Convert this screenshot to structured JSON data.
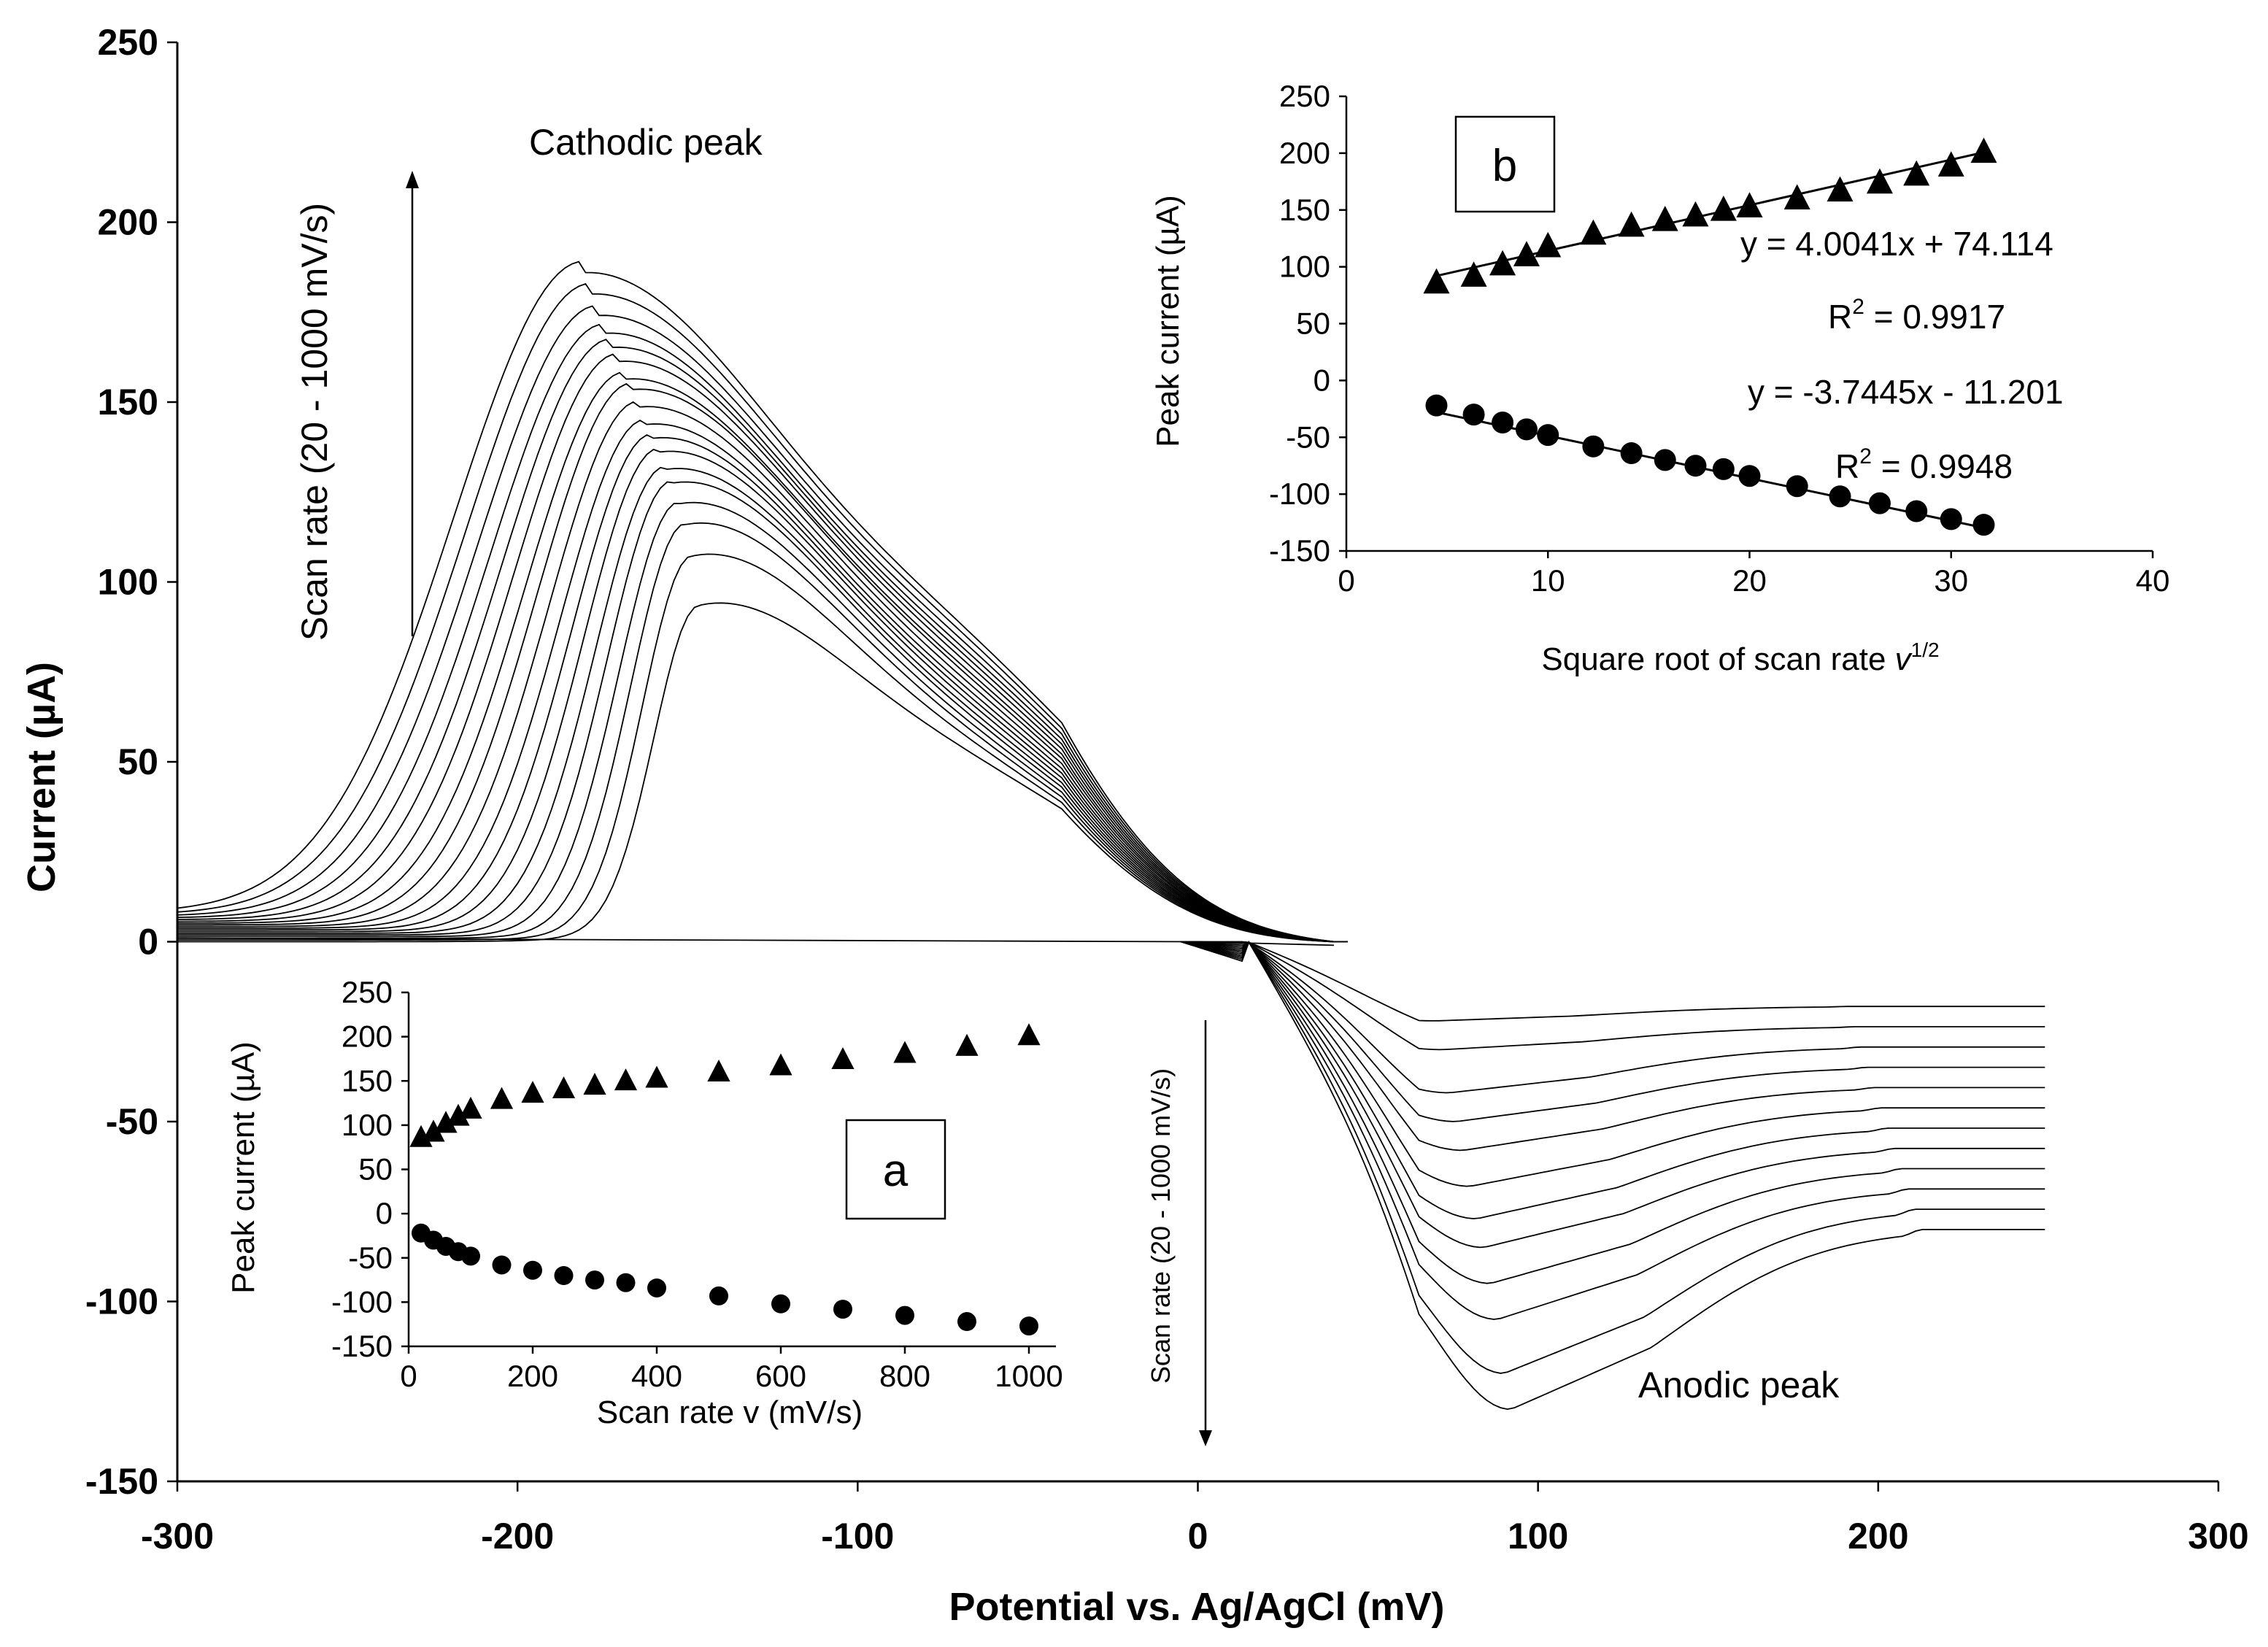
{
  "chart_data": [
    {
      "id": "main",
      "type": "line",
      "description_free": true,
      "xlabel": "Potential vs. Ag/AgCl  (mV)",
      "ylabel": "Current (µA)",
      "xlim": [
        -300,
        300
      ],
      "ylim": [
        -150,
        250
      ],
      "x_ticks": [
        "-300",
        "-200",
        "-100",
        "0",
        "100",
        "200",
        "300"
      ],
      "y_ticks": [
        "-150",
        "-100",
        "-50",
        "0",
        "50",
        "100",
        "150",
        "200",
        "250"
      ],
      "grid": false,
      "line_color": "#000000",
      "cathodic_peaks": {
        "potential": [
          -147,
          -149,
          -151,
          -153,
          -155,
          -157,
          -159,
          -161,
          -163,
          -165,
          -167,
          -169,
          -171,
          -173,
          -175,
          -177,
          -179,
          -181
        ],
        "current": [
          88,
          103,
          113,
          120,
          127,
          132,
          138,
          143,
          148,
          154,
          160,
          164,
          170,
          175,
          180,
          186,
          193,
          200
        ]
      },
      "anodic_peaks": {
        "potential": [
          70,
          72,
          74,
          76,
          78,
          80,
          82,
          84,
          86,
          88,
          90,
          92
        ],
        "current": [
          -22,
          -30,
          -42,
          -50,
          -58,
          -68,
          -77,
          -85,
          -95,
          -105,
          -120,
          -130
        ]
      },
      "annotations": {
        "cathodic_label": "Cathodic peak",
        "anodic_label": "Anodic peak",
        "scan_rate_up": "Scan rate (20 - 1000 mV/s)",
        "scan_rate_down": "Scan rate (20 - 1000 mV/s)"
      }
    },
    {
      "id": "inset-a",
      "type": "scatter",
      "box_label": "a",
      "xlabel": "Scan rate v (mV/s)",
      "ylabel": "Peak current (µA)",
      "xlim": [
        0,
        1000
      ],
      "ylim": [
        -150,
        250
      ],
      "x_ticks": [
        "0",
        "200",
        "400",
        "600",
        "800",
        "1000"
      ],
      "y_ticks": [
        "-150",
        "-100",
        "-50",
        "0",
        "50",
        "100",
        "150",
        "200",
        "250"
      ],
      "series": [
        {
          "marker": "triangle",
          "x": [
            20,
            40,
            60,
            80,
            100,
            150,
            200,
            250,
            300,
            350,
            400,
            500,
            600,
            700,
            800,
            900,
            1000
          ],
          "y": [
            86,
            92,
            102,
            110,
            118,
            129,
            136,
            141,
            145,
            150,
            153,
            160,
            167,
            174,
            181,
            189,
            201
          ]
        },
        {
          "marker": "circle",
          "x": [
            20,
            40,
            60,
            80,
            100,
            150,
            200,
            250,
            300,
            350,
            400,
            500,
            600,
            700,
            800,
            900,
            1000
          ],
          "y": [
            -22,
            -30,
            -37,
            -43,
            -48,
            -58,
            -64,
            -70,
            -75,
            -78,
            -84,
            -93,
            -102,
            -108,
            -115,
            -122,
            -127
          ]
        }
      ]
    },
    {
      "id": "inset-b",
      "type": "scatter",
      "box_label": "b",
      "xlabel": "Square root of scan rate ",
      "xlabel_symbol": "v",
      "xlabel_sup": "1/2",
      "ylabel": "Peak current (µA)",
      "xlim": [
        0,
        40
      ],
      "ylim": [
        -150,
        250
      ],
      "x_ticks": [
        "0",
        "10",
        "20",
        "30",
        "40"
      ],
      "y_ticks": [
        "-150",
        "-100",
        "-50",
        "0",
        "50",
        "100",
        "150",
        "200",
        "250"
      ],
      "series": [
        {
          "marker": "triangle",
          "x": [
            4.47,
            6.32,
            7.75,
            8.94,
            10.0,
            12.25,
            14.14,
            15.81,
            17.32,
            18.71,
            20.0,
            22.36,
            24.49,
            26.46,
            28.28,
            30.0,
            31.62
          ],
          "y": [
            86,
            92,
            102,
            110,
            118,
            129,
            136,
            141,
            145,
            150,
            153,
            160,
            167,
            174,
            181,
            189,
            201
          ],
          "fit": {
            "slope": 4.0041,
            "intercept": 74.114,
            "x_range": [
              4.47,
              31.62
            ]
          },
          "equation": "y = 4.0041x + 74.114",
          "r2_prefix": "R",
          "r2_sup": "2",
          "r2_value": " = 0.9917"
        },
        {
          "marker": "circle",
          "x": [
            4.47,
            6.32,
            7.75,
            8.94,
            10.0,
            12.25,
            14.14,
            15.81,
            17.32,
            18.71,
            20.0,
            22.36,
            24.49,
            26.46,
            28.28,
            30.0,
            31.62
          ],
          "y": [
            -22,
            -30,
            -37,
            -43,
            -48,
            -58,
            -64,
            -70,
            -75,
            -78,
            -84,
            -93,
            -102,
            -108,
            -115,
            -122,
            -127
          ],
          "fit": {
            "slope": -3.7445,
            "intercept": -11.201,
            "x_range": [
              4.47,
              31.62
            ]
          },
          "equation": "y = -3.7445x - 11.201",
          "r2_prefix": "R",
          "r2_sup": "2",
          "r2_value": " = 0.9948"
        }
      ]
    }
  ]
}
